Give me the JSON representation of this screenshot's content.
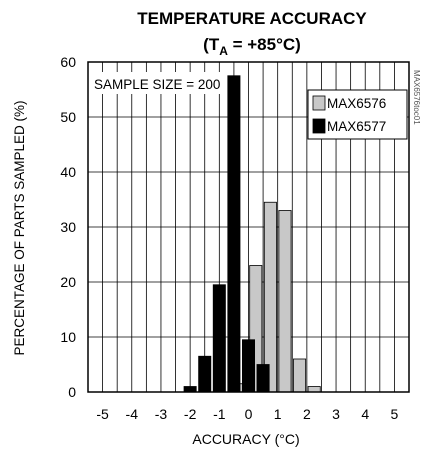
{
  "chart_data": {
    "type": "bar",
    "title": "TEMPERATURE ACCURACY",
    "subtitle": {
      "prefix": "(T",
      "sub": "A",
      "suffix": " = +85°C)"
    },
    "xlabel": "ACCURACY (°C)",
    "ylabel": "PERCENTAGE OF PARTS SAMPLED (%)",
    "xlim": [
      -5.5,
      5.5
    ],
    "ylim": [
      0,
      60
    ],
    "xticks": [
      -5,
      -4,
      -3,
      -2,
      -1,
      0,
      1,
      2,
      3,
      4,
      5
    ],
    "yticks": [
      0,
      10,
      20,
      30,
      40,
      50,
      60
    ],
    "grid": true,
    "annotation": "SAMPLE SIZE = 200",
    "watermark": "MAX6576toc01",
    "legend_position": "top-right",
    "series": [
      {
        "name": "MAX6576",
        "color": "#c8c8c8",
        "x": [
          -0.75,
          -0.25,
          0.25,
          0.75,
          1.25,
          1.75,
          2.25
        ],
        "values": [
          0,
          1.5,
          23,
          34.5,
          33,
          6,
          1
        ]
      },
      {
        "name": "MAX6577",
        "color": "#000000",
        "x": [
          -2.0,
          -1.5,
          -1.0,
          -0.5,
          0.0,
          0.5,
          1.0
        ],
        "values": [
          1,
          6.5,
          19.5,
          57.5,
          9.5,
          5,
          0
        ]
      }
    ]
  }
}
